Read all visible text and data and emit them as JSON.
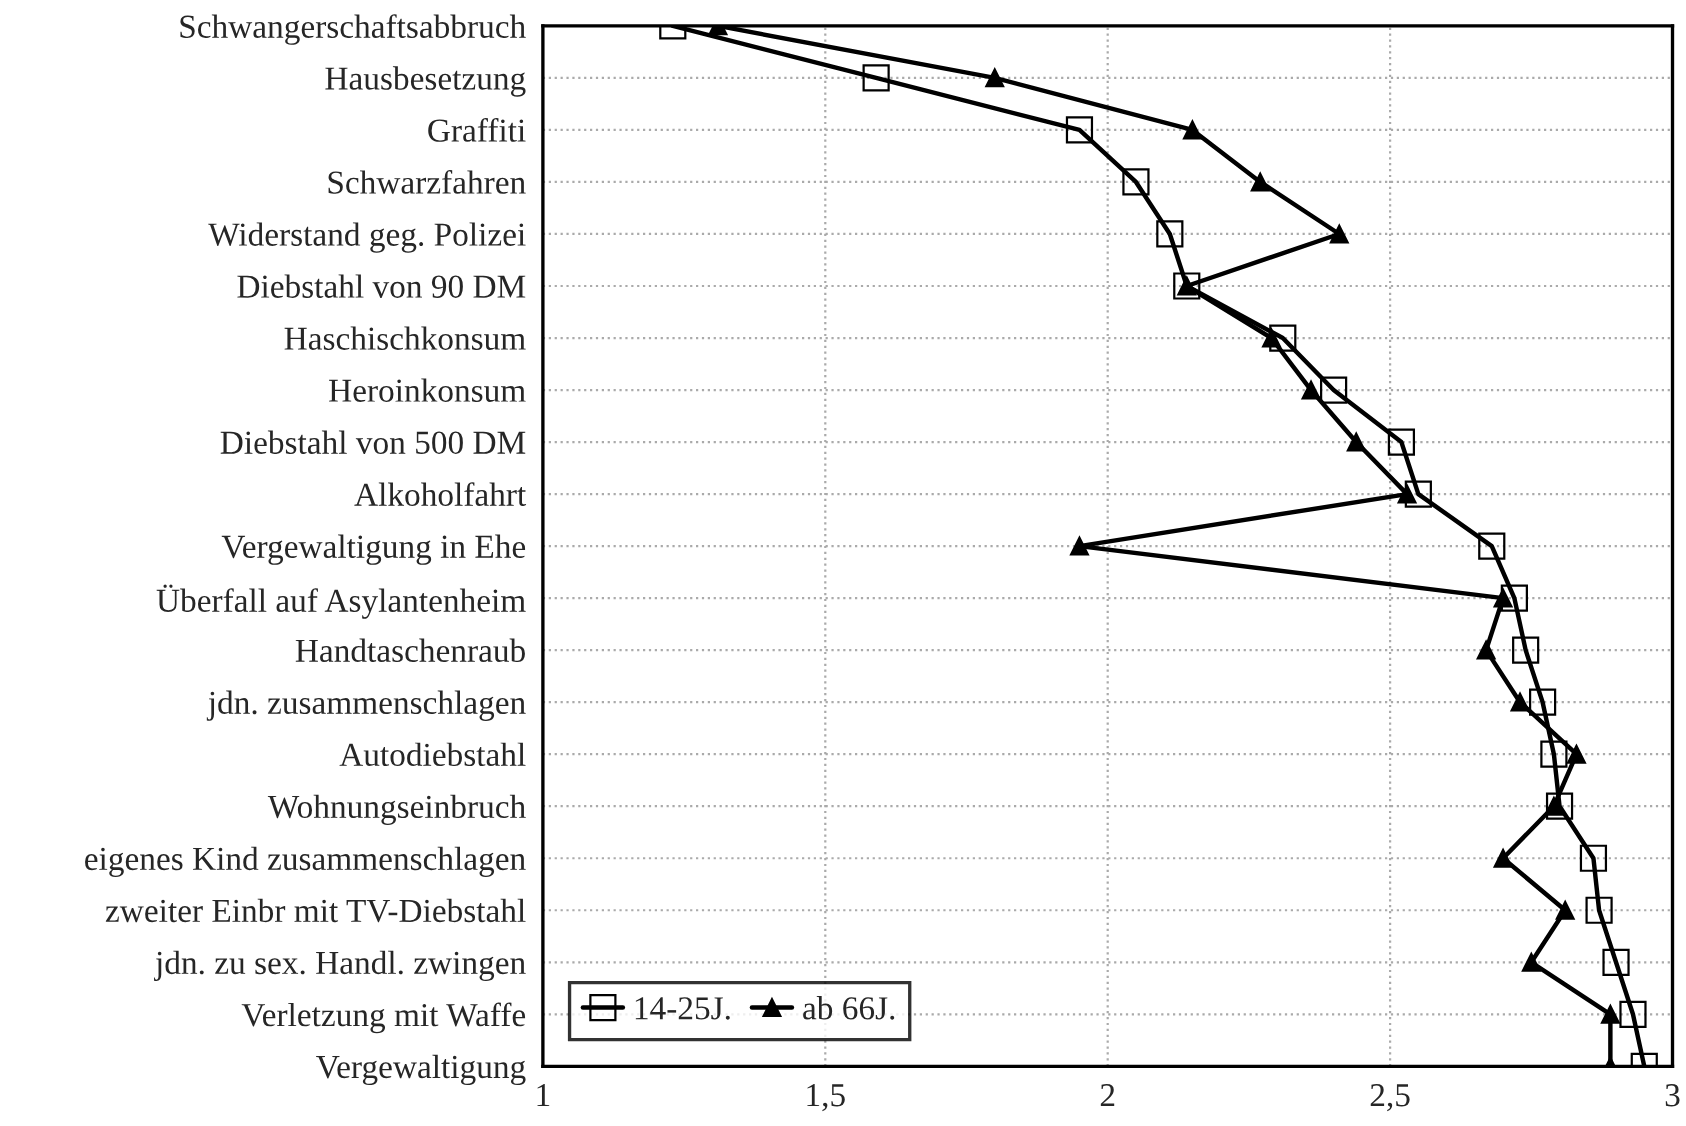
{
  "chart_data": {
    "type": "line",
    "orientation": "horizontal",
    "categories": [
      "Schwangerschaftsabbruch",
      "Hausbesetzung",
      "Graffiti",
      "Schwarzfahren",
      "Widerstand geg. Polizei",
      "Diebstahl von 90 DM",
      "Haschischkonsum",
      "Heroinkonsum",
      "Diebstahl von 500 DM",
      "Alkoholfahrt",
      "Vergewaltigung in Ehe",
      "Überfall auf Asylantenheim",
      "Handtaschenraub",
      "jdn. zusammenschlagen",
      "Autodiebstahl",
      "Wohnungseinbruch",
      "eigenes Kind zusammenschlagen",
      "zweiter Einbr mit TV-Diebstahl",
      "jdn. zu sex. Handl. zwingen",
      "Verletzung mit Waffe",
      "Vergewaltigung"
    ],
    "series": [
      {
        "name": "14-25J.",
        "color": "#000000",
        "marker": "square",
        "values": [
          1.23,
          1.59,
          1.95,
          2.05,
          2.11,
          2.14,
          2.31,
          2.4,
          2.52,
          2.55,
          2.68,
          2.72,
          2.74,
          2.77,
          2.79,
          2.8,
          2.86,
          2.87,
          2.9,
          2.93,
          2.95
        ]
      },
      {
        "name": "ab 66J.",
        "color": "#000000",
        "marker": "triangle",
        "values": [
          1.31,
          1.8,
          2.15,
          2.27,
          2.41,
          2.14,
          2.29,
          2.36,
          2.44,
          2.53,
          1.95,
          2.7,
          2.67,
          2.73,
          2.83,
          2.79,
          2.7,
          2.81,
          2.75,
          2.89,
          2.89
        ]
      }
    ],
    "xlim": [
      1,
      3
    ],
    "xticks": [
      1,
      {
        "value": 1.5,
        "label": "1,5"
      },
      2,
      {
        "value": 2.5,
        "label": "2,5"
      },
      3
    ],
    "grid": true,
    "legend": "bottom left",
    "line_style": "solid"
  }
}
